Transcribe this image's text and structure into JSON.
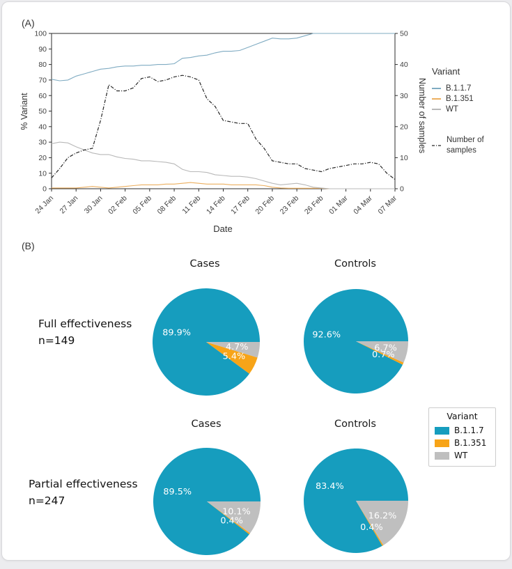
{
  "figure": {
    "panel_a_label": "(A)",
    "panel_b_label": "(B)"
  },
  "panel_a": {
    "legend": {
      "title": "Variant",
      "entries": [
        {
          "label": "B.1.1.7",
          "color": "#7fabc2"
        },
        {
          "label": "B.1.351",
          "color": "#ecaf5f"
        },
        {
          "label": "WT",
          "color": "#b8b8b8"
        }
      ],
      "samples_line1": "Number of",
      "samples_line2": "samples",
      "samples_color": "#262626"
    }
  },
  "panel_b": {
    "rows": [
      {
        "label_line1": "Full effectiveness",
        "label_line2": "n=149",
        "pie_titles": [
          "Cases",
          "Controls"
        ]
      },
      {
        "label_line1": "Partial effectiveness",
        "label_line2": "n=247",
        "pie_titles": [
          "Cases",
          "Controls"
        ]
      }
    ],
    "legend": {
      "title": "Variant",
      "entries": [
        {
          "label": "B.1.1.7",
          "color": "#169dbe"
        },
        {
          "label": "B.1.351",
          "color": "#f7a418"
        },
        {
          "label": "WT",
          "color": "#bfbfbf"
        }
      ]
    }
  },
  "chart_data": [
    {
      "type": "line",
      "title": "",
      "xlabel": "Date",
      "ylabel_left": "% Variant",
      "ylabel_right": "Number of samples",
      "ylim_left": [
        0,
        100
      ],
      "ylim_right": [
        0,
        50
      ],
      "yticks_left": [
        0,
        10,
        20,
        30,
        40,
        50,
        60,
        70,
        80,
        90,
        100
      ],
      "yticks_right": [
        0,
        10,
        20,
        30,
        40,
        50
      ],
      "x_tick_labels": [
        "24 Jan",
        "27 Jan",
        "30 Jan",
        "02 Feb",
        "05 Feb",
        "08 Feb",
        "11 Feb",
        "14 Feb",
        "17 Feb",
        "20 Feb",
        "23 Feb",
        "26 Feb",
        "01 Mar",
        "04 Mar",
        "07 Mar"
      ],
      "x": [
        "24 Jan",
        "25 Jan",
        "26 Jan",
        "27 Jan",
        "28 Jan",
        "29 Jan",
        "30 Jan",
        "31 Jan",
        "01 Feb",
        "02 Feb",
        "03 Feb",
        "04 Feb",
        "05 Feb",
        "06 Feb",
        "07 Feb",
        "08 Feb",
        "09 Feb",
        "10 Feb",
        "11 Feb",
        "12 Feb",
        "13 Feb",
        "14 Feb",
        "15 Feb",
        "16 Feb",
        "17 Feb",
        "18 Feb",
        "19 Feb",
        "20 Feb",
        "21 Feb",
        "22 Feb",
        "23 Feb",
        "24 Feb",
        "25 Feb",
        "26 Feb",
        "27 Feb",
        "28 Feb",
        "01 Mar",
        "02 Mar",
        "03 Mar",
        "04 Mar",
        "05 Mar",
        "06 Mar",
        "07 Mar"
      ],
      "series": [
        {
          "name": "B.1.1.7",
          "axis": "left",
          "color": "#7fabc2",
          "dash": false,
          "values": [
            70.5,
            69.5,
            70,
            72.5,
            74,
            75.5,
            77,
            77.5,
            78.5,
            79,
            79,
            79.5,
            79.5,
            80,
            80,
            80.5,
            84,
            84.5,
            85.5,
            86,
            87.5,
            88.5,
            88.5,
            89,
            91,
            93,
            95,
            97,
            96.5,
            96.5,
            97,
            98.5,
            100,
            100,
            100,
            100,
            100,
            100,
            100,
            100,
            100,
            100,
            100
          ]
        },
        {
          "name": "B.1.351",
          "axis": "left",
          "color": "#ecaf5f",
          "dash": false,
          "values": [
            0.5,
            0.5,
            0.5,
            0.5,
            1,
            1.5,
            1,
            0.5,
            1,
            1.5,
            2,
            2.5,
            2.5,
            2.5,
            3,
            3,
            3.5,
            4,
            3.5,
            3,
            3,
            3,
            2.5,
            2.5,
            2.5,
            2.5,
            2,
            1,
            0.5,
            0.3,
            0.3,
            0.3,
            0.3,
            0.3,
            0,
            0,
            0,
            0,
            0,
            0,
            0,
            0,
            0
          ]
        },
        {
          "name": "WT",
          "axis": "left",
          "color": "#b8b8b8",
          "dash": false,
          "values": [
            29,
            30,
            29.5,
            27,
            25,
            23,
            22,
            22,
            20.5,
            19.5,
            19,
            18,
            18,
            17.5,
            17,
            16,
            12.5,
            11,
            11,
            10.5,
            9,
            8.5,
            8,
            8,
            7.5,
            6.5,
            5,
            3.5,
            2.5,
            3,
            3.5,
            2.5,
            1,
            0.5,
            0,
            0,
            0,
            0,
            0,
            0,
            0,
            0,
            0
          ]
        },
        {
          "name": "Number of samples",
          "axis": "right",
          "color": "#262626",
          "dash": true,
          "values": [
            3.5,
            6.5,
            10,
            11.5,
            12.5,
            13,
            22,
            33.5,
            31.5,
            31.5,
            32.5,
            35.5,
            36,
            34.5,
            35,
            36,
            36.5,
            36,
            35,
            29,
            26.5,
            22,
            21.5,
            21,
            21,
            16,
            13,
            9,
            8.5,
            8,
            8,
            6.5,
            6,
            5.5,
            6.5,
            7,
            7.5,
            8,
            8,
            8.5,
            8,
            5,
            3
          ]
        }
      ],
      "legend_position": "right",
      "grid": false
    },
    {
      "type": "pie",
      "group": "Full effectiveness",
      "n": 149,
      "title": "Cases",
      "labels": [
        "B.1.1.7",
        "B.1.351",
        "WT"
      ],
      "values": [
        89.9,
        5.4,
        4.7
      ],
      "colors": [
        "#169dbe",
        "#f7a418",
        "#bfbfbf"
      ]
    },
    {
      "type": "pie",
      "group": "Full effectiveness",
      "n": 149,
      "title": "Controls",
      "labels": [
        "B.1.1.7",
        "B.1.351",
        "WT"
      ],
      "values": [
        92.6,
        0.7,
        6.7
      ],
      "colors": [
        "#169dbe",
        "#f7a418",
        "#bfbfbf"
      ]
    },
    {
      "type": "pie",
      "group": "Partial effectiveness",
      "n": 247,
      "title": "Cases",
      "labels": [
        "B.1.1.7",
        "B.1.351",
        "WT"
      ],
      "values": [
        89.5,
        0.4,
        10.1
      ],
      "colors": [
        "#169dbe",
        "#f7a418",
        "#bfbfbf"
      ]
    },
    {
      "type": "pie",
      "group": "Partial effectiveness",
      "n": 247,
      "title": "Controls",
      "labels": [
        "B.1.1.7",
        "B.1.351",
        "WT"
      ],
      "values": [
        83.4,
        0.4,
        16.2
      ],
      "colors": [
        "#169dbe",
        "#f7a418",
        "#bfbfbf"
      ]
    }
  ]
}
